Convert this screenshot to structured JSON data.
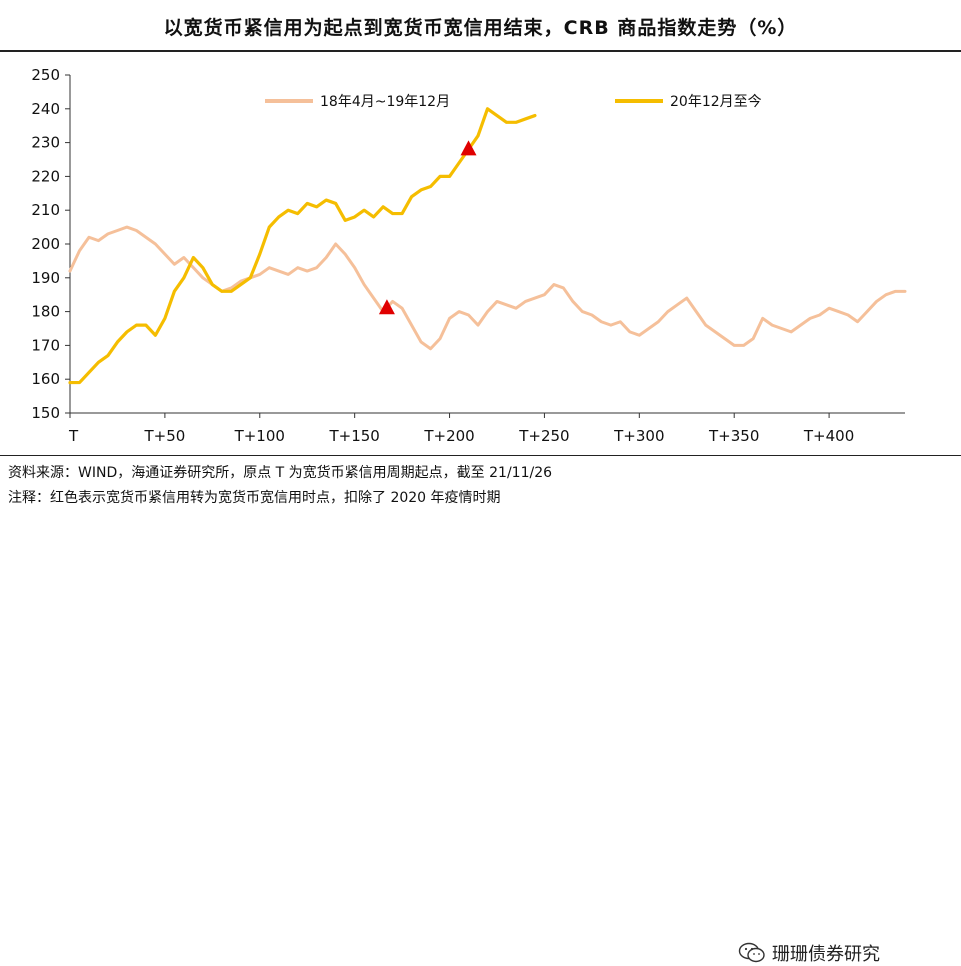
{
  "header": {
    "title": "以宽货币紧信用为起点到宽货币宽信用结束，CRB 商品指数走势（%）"
  },
  "footer": {
    "source": "资料来源：WIND，海通证券研究所，原点 T 为宽货币紧信用周期起点，截至 21/11/26",
    "note": "注释：红色表示宽货币紧信用转为宽货币宽信用时点，扣除了 2020 年疫情时期",
    "watermark": "珊珊债券研究"
  },
  "colors": {
    "series1": "#f5c09a",
    "series2": "#f5bd00",
    "marker": "#e00000",
    "axis": "#333333"
  },
  "chart_data": {
    "type": "line",
    "xlim": [
      0,
      440
    ],
    "ylim": [
      150,
      250
    ],
    "x_ticks": [
      0,
      50,
      100,
      150,
      200,
      250,
      300,
      350,
      400
    ],
    "x_tick_labels": [
      "T",
      "T+50",
      "T+100",
      "T+150",
      "T+200",
      "T+250",
      "T+300",
      "T+350",
      "T+400"
    ],
    "y_ticks": [
      150,
      160,
      170,
      180,
      190,
      200,
      210,
      220,
      230,
      240,
      250
    ],
    "legend_position": "top",
    "series": [
      {
        "name": "18年4月~19年12月",
        "x": [
          0,
          5,
          10,
          15,
          20,
          25,
          30,
          35,
          40,
          45,
          50,
          55,
          60,
          65,
          70,
          75,
          80,
          85,
          90,
          95,
          100,
          105,
          110,
          115,
          120,
          125,
          130,
          135,
          140,
          145,
          150,
          155,
          160,
          165,
          170,
          175,
          180,
          185,
          190,
          195,
          200,
          205,
          210,
          215,
          220,
          225,
          230,
          235,
          240,
          245,
          250,
          255,
          260,
          265,
          270,
          275,
          280,
          285,
          290,
          295,
          300,
          305,
          310,
          315,
          320,
          325,
          330,
          335,
          340,
          345,
          350,
          355,
          360,
          365,
          370,
          375,
          380,
          385,
          390,
          395,
          400,
          405,
          410,
          415,
          420,
          425,
          430,
          435,
          440
        ],
        "values": [
          192,
          198,
          202,
          201,
          203,
          204,
          205,
          204,
          202,
          200,
          197,
          194,
          196,
          193,
          190,
          188,
          186,
          187,
          189,
          190,
          191,
          193,
          192,
          191,
          193,
          192,
          193,
          196,
          200,
          197,
          193,
          188,
          184,
          180,
          183,
          181,
          176,
          171,
          169,
          172,
          178,
          180,
          179,
          176,
          180,
          183,
          182,
          181,
          183,
          184,
          185,
          188,
          187,
          183,
          180,
          179,
          177,
          176,
          177,
          174,
          173,
          175,
          177,
          180,
          182,
          184,
          180,
          176,
          174,
          172,
          170,
          170,
          172,
          178,
          176,
          175,
          174,
          176,
          178,
          179,
          181,
          180,
          179,
          177,
          180,
          183,
          185,
          186,
          186
        ],
        "color": "#f5c09a"
      },
      {
        "name": "20年12月至今",
        "x": [
          0,
          5,
          10,
          15,
          20,
          25,
          30,
          35,
          40,
          45,
          50,
          55,
          60,
          65,
          70,
          75,
          80,
          85,
          90,
          95,
          100,
          105,
          110,
          115,
          120,
          125,
          130,
          135,
          140,
          145,
          150,
          155,
          160,
          165,
          170,
          175,
          180,
          185,
          190,
          195,
          200,
          205,
          210,
          215,
          220,
          225,
          230,
          235,
          240,
          245
        ],
        "values": [
          159,
          159,
          162,
          165,
          167,
          171,
          174,
          176,
          176,
          173,
          178,
          186,
          190,
          196,
          193,
          188,
          186,
          186,
          188,
          190,
          197,
          205,
          208,
          210,
          209,
          212,
          211,
          213,
          212,
          207,
          208,
          210,
          208,
          211,
          209,
          209,
          214,
          216,
          217,
          220,
          220,
          224,
          228,
          232,
          240,
          238,
          236,
          236,
          237,
          238
        ],
        "color": "#f5bd00"
      }
    ],
    "markers": [
      {
        "series": "18年4月~19年12月",
        "x": 167,
        "y": 181
      },
      {
        "series": "20年12月至今",
        "x": 210,
        "y": 228
      }
    ]
  }
}
